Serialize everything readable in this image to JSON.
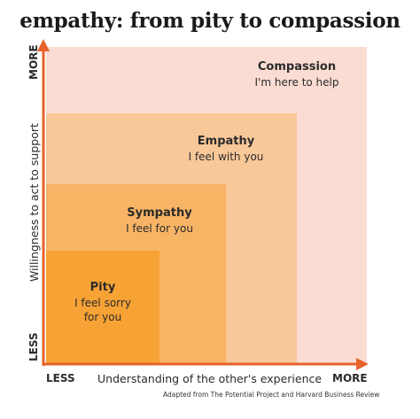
{
  "title": "empathy: from pity to compassion",
  "zones": {
    "compassion": {
      "name": "Compassion",
      "phrase": "I'm here to help",
      "color": "#fbdcd3"
    },
    "empathy": {
      "name": "Empathy",
      "phrase": "I feel with you",
      "color": "#f9c899"
    },
    "sympathy": {
      "name": "Sympathy",
      "phrase": "I feel for you",
      "color": "#f8b465"
    },
    "pity": {
      "name": "Pity",
      "phrase_line1": "I feel sorry",
      "phrase_line2": "for you",
      "color": "#f7a235"
    }
  },
  "x_axis": {
    "less": "LESS",
    "more": "MORE",
    "title": "Understanding of the other's experience"
  },
  "y_axis": {
    "less": "LESS",
    "more": "MORE",
    "title": "Willingness to act to support"
  },
  "axis_color": "#e8622c",
  "credit": "Adapted from The Potential Project and Harvard Business Review"
}
